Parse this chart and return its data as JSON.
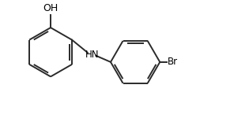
{
  "bg_color": "#ffffff",
  "line_color": "#2a2a2a",
  "line_width": 1.4,
  "text_color": "#000000",
  "font_size": 8.5,
  "OH_label": "OH",
  "NH_label": "HN",
  "Br_label": "Br",
  "fig_width": 3.15,
  "fig_height": 1.5,
  "dpi": 100,
  "xlim": [
    0,
    10
  ],
  "ylim": [
    0,
    5
  ]
}
